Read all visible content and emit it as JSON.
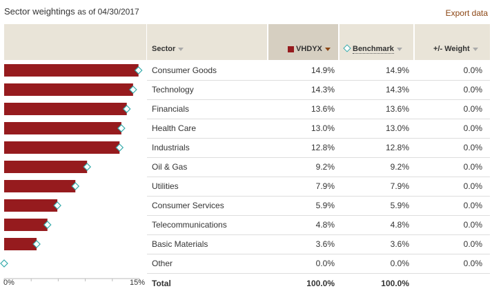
{
  "header": {
    "title": "Sector weightings",
    "as_of": "as of 04/30/2017",
    "export_label": "Export data"
  },
  "columns": {
    "sector": "Sector",
    "fund": "VHDYX",
    "benchmark": "Benchmark",
    "weight": "+/- Weight"
  },
  "axis": {
    "min_label": "0%",
    "max_label": "15%"
  },
  "total": {
    "label": "Total",
    "fund": "100.0%",
    "benchmark": "100.0%"
  },
  "colors": {
    "bar": "#961b1e",
    "benchmark_marker": "#33aaaa",
    "header_bg": "#e9e4d8"
  },
  "rows": [
    {
      "sector": "Consumer Goods",
      "fund": "14.9%",
      "benchmark": "14.9%",
      "weight": "0.0%"
    },
    {
      "sector": "Technology",
      "fund": "14.3%",
      "benchmark": "14.3%",
      "weight": "0.0%"
    },
    {
      "sector": "Financials",
      "fund": "13.6%",
      "benchmark": "13.6%",
      "weight": "0.0%"
    },
    {
      "sector": "Health Care",
      "fund": "13.0%",
      "benchmark": "13.0%",
      "weight": "0.0%"
    },
    {
      "sector": "Industrials",
      "fund": "12.8%",
      "benchmark": "12.8%",
      "weight": "0.0%"
    },
    {
      "sector": "Oil & Gas",
      "fund": "9.2%",
      "benchmark": "9.2%",
      "weight": "0.0%"
    },
    {
      "sector": "Utilities",
      "fund": "7.9%",
      "benchmark": "7.9%",
      "weight": "0.0%"
    },
    {
      "sector": "Consumer Services",
      "fund": "5.9%",
      "benchmark": "5.9%",
      "weight": "0.0%"
    },
    {
      "sector": "Telecommunications",
      "fund": "4.8%",
      "benchmark": "4.8%",
      "weight": "0.0%"
    },
    {
      "sector": "Basic Materials",
      "fund": "3.6%",
      "benchmark": "3.6%",
      "weight": "0.0%"
    },
    {
      "sector": "Other",
      "fund": "0.0%",
      "benchmark": "0.0%",
      "weight": "0.0%"
    }
  ],
  "chart_data": {
    "type": "bar",
    "orientation": "horizontal",
    "categories": [
      "Consumer Goods",
      "Technology",
      "Financials",
      "Health Care",
      "Industrials",
      "Oil & Gas",
      "Utilities",
      "Consumer Services",
      "Telecommunications",
      "Basic Materials",
      "Other"
    ],
    "series": [
      {
        "name": "VHDYX",
        "values": [
          14.9,
          14.3,
          13.6,
          13.0,
          12.8,
          9.2,
          7.9,
          5.9,
          4.8,
          3.6,
          0.0
        ]
      },
      {
        "name": "Benchmark",
        "values": [
          14.9,
          14.3,
          13.6,
          13.0,
          12.8,
          9.2,
          7.9,
          5.9,
          4.8,
          3.6,
          0.0
        ]
      }
    ],
    "xlim": [
      0,
      15
    ],
    "xticks": [
      "0%",
      "15%"
    ]
  }
}
